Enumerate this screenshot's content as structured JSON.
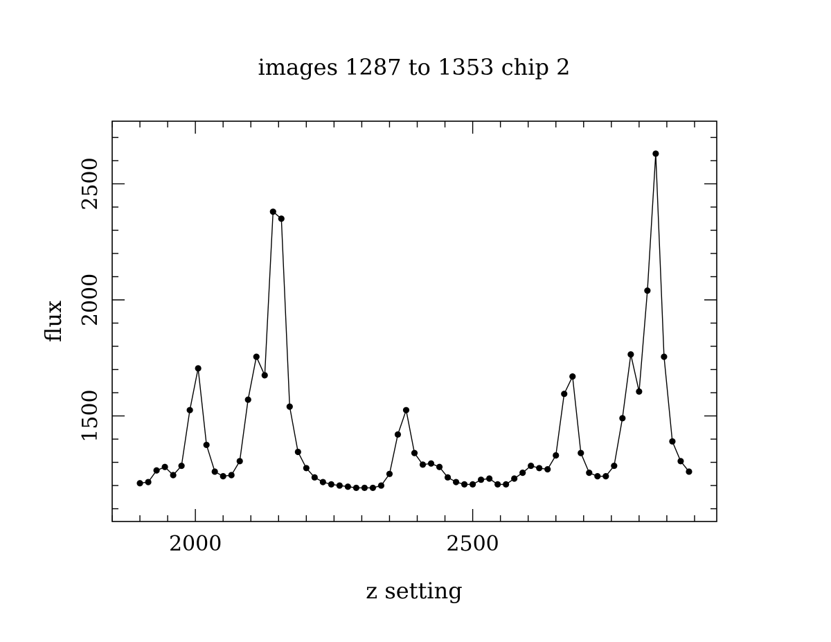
{
  "chart_data": {
    "type": "line",
    "title": "images 1287 to 1353 chip 2",
    "xlabel": "z setting",
    "ylabel": "flux",
    "xlim": [
      1850,
      2940
    ],
    "ylim": [
      1045,
      2770
    ],
    "x_tick_labels": [
      {
        "value": 2000,
        "label": "2000"
      },
      {
        "value": 2500,
        "label": "2500"
      }
    ],
    "y_tick_labels": [
      {
        "value": 1500,
        "label": "1500"
      },
      {
        "value": 2000,
        "label": "2000"
      },
      {
        "value": 2500,
        "label": "2500"
      }
    ],
    "x_minor_step": 50,
    "y_minor_step": 100,
    "grid": false,
    "legend": "none",
    "line_color": "#000000",
    "marker": "filled-circle",
    "series": [
      {
        "x": [
          1900,
          1915,
          1930,
          1945,
          1960,
          1975,
          1990,
          2005,
          2020,
          2035,
          2050,
          2065,
          2080,
          2095,
          2110,
          2125,
          2140,
          2155,
          2170,
          2185,
          2200,
          2215,
          2230,
          2245,
          2260,
          2275,
          2290,
          2305,
          2320,
          2335,
          2350,
          2365,
          2380,
          2395,
          2410,
          2425,
          2440,
          2455,
          2470,
          2485,
          2500,
          2515,
          2530,
          2545,
          2560,
          2575,
          2590,
          2605,
          2620,
          2635,
          2650,
          2665,
          2680,
          2695,
          2710,
          2725,
          2740,
          2755,
          2770,
          2785,
          2800,
          2815,
          2830,
          2845,
          2860,
          2875,
          2890
        ],
        "y": [
          1210,
          1215,
          1265,
          1280,
          1245,
          1285,
          1525,
          1705,
          1375,
          1260,
          1240,
          1245,
          1305,
          1570,
          1755,
          1675,
          2380,
          2350,
          1540,
          1345,
          1275,
          1235,
          1215,
          1205,
          1200,
          1195,
          1190,
          1190,
          1190,
          1200,
          1250,
          1420,
          1525,
          1340,
          1290,
          1295,
          1280,
          1235,
          1215,
          1205,
          1205,
          1225,
          1230,
          1205,
          1205,
          1230,
          1255,
          1285,
          1275,
          1270,
          1330,
          1595,
          1670,
          1340,
          1255,
          1240,
          1240,
          1285,
          1490,
          1765,
          1605,
          2040,
          2630,
          1755,
          1390,
          1305,
          1260
        ]
      }
    ]
  }
}
